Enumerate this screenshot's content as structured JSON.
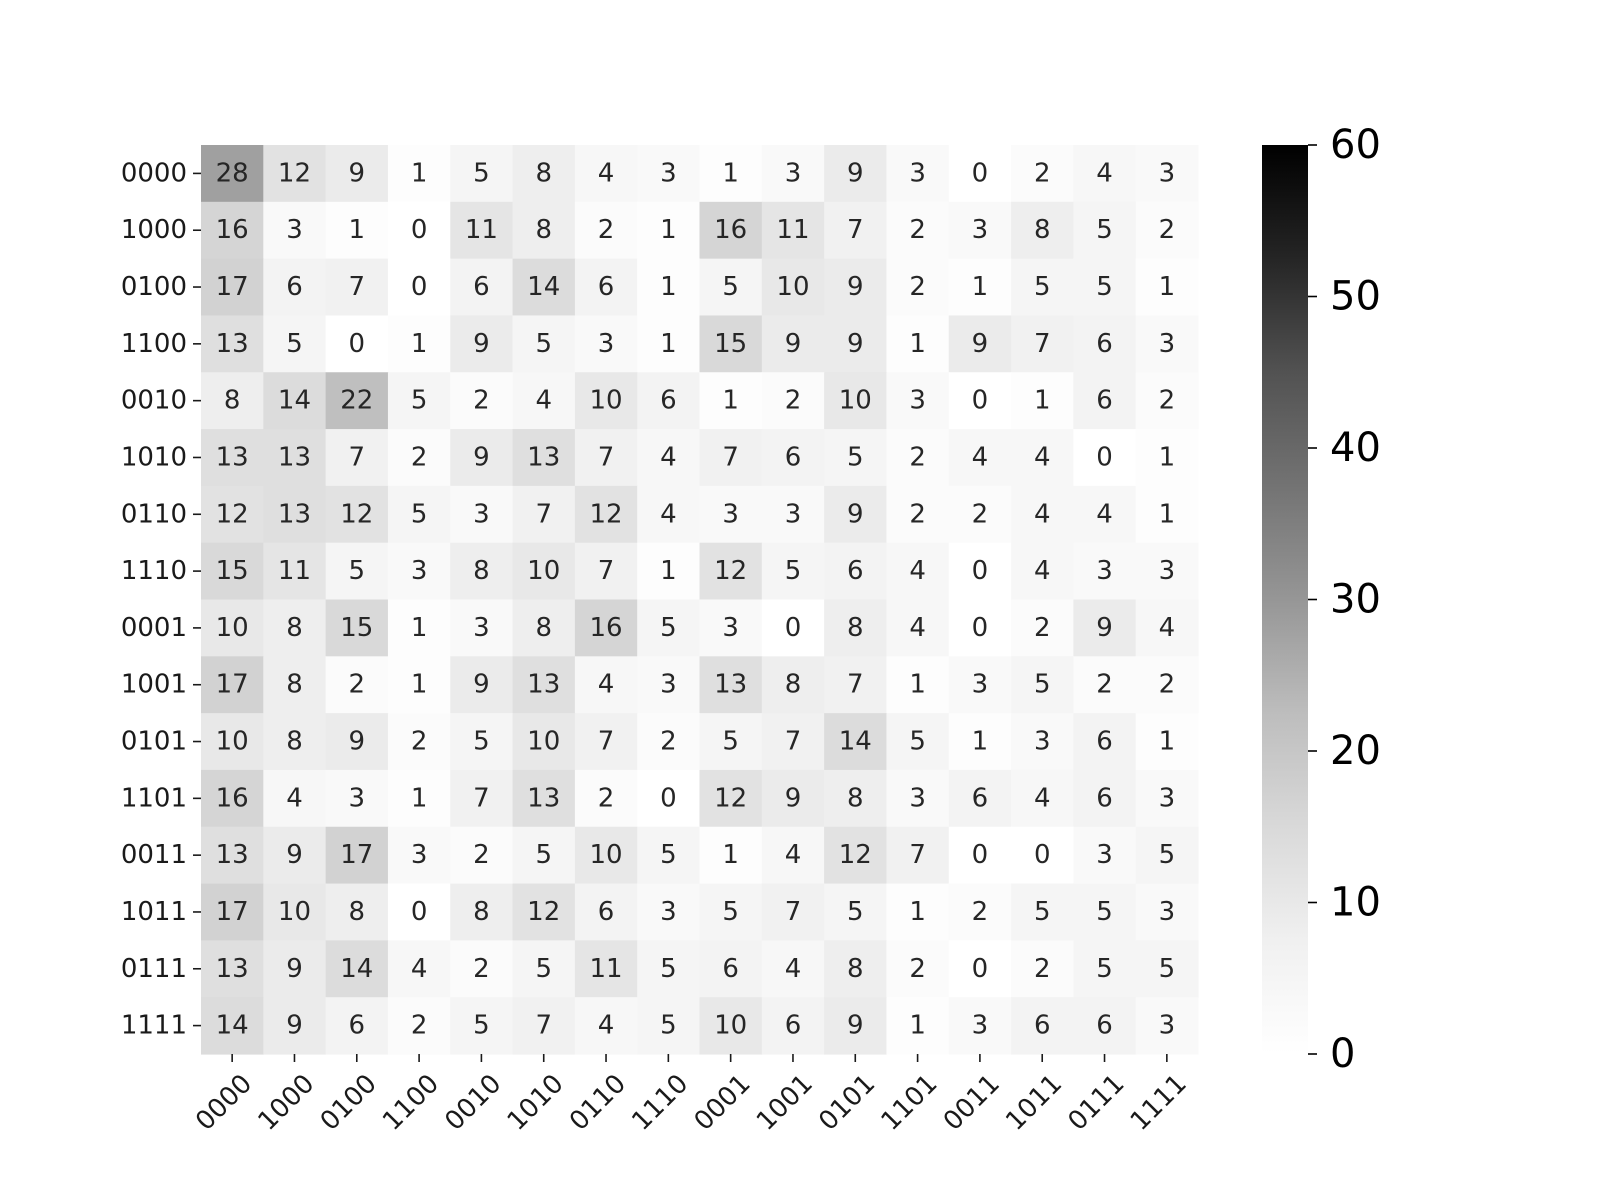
{
  "chart_data": {
    "type": "heatmap",
    "title": "",
    "xlabel": "",
    "ylabel": "",
    "x_categories": [
      "0000",
      "1000",
      "0100",
      "1100",
      "0010",
      "1010",
      "0110",
      "1110",
      "0001",
      "1001",
      "0101",
      "1101",
      "0011",
      "1011",
      "0111",
      "1111"
    ],
    "y_categories": [
      "0000",
      "1000",
      "0100",
      "1100",
      "0010",
      "1010",
      "0110",
      "1110",
      "0001",
      "1001",
      "0101",
      "1101",
      "0011",
      "1011",
      "0111",
      "1111"
    ],
    "values": [
      [
        28,
        12,
        9,
        1,
        5,
        8,
        4,
        3,
        1,
        3,
        9,
        3,
        0,
        2,
        4,
        3
      ],
      [
        16,
        3,
        1,
        0,
        11,
        8,
        2,
        1,
        16,
        11,
        7,
        2,
        3,
        8,
        5,
        2
      ],
      [
        17,
        6,
        7,
        0,
        6,
        14,
        6,
        1,
        5,
        10,
        9,
        2,
        1,
        5,
        5,
        1
      ],
      [
        13,
        5,
        0,
        1,
        9,
        5,
        3,
        1,
        15,
        9,
        9,
        1,
        9,
        7,
        6,
        3
      ],
      [
        8,
        14,
        22,
        5,
        2,
        4,
        10,
        6,
        1,
        2,
        10,
        3,
        0,
        1,
        6,
        2
      ],
      [
        13,
        13,
        7,
        2,
        9,
        13,
        7,
        4,
        7,
        6,
        5,
        2,
        4,
        4,
        0,
        1
      ],
      [
        12,
        13,
        12,
        5,
        3,
        7,
        12,
        4,
        3,
        3,
        9,
        2,
        2,
        4,
        4,
        1
      ],
      [
        15,
        11,
        5,
        3,
        8,
        10,
        7,
        1,
        12,
        5,
        6,
        4,
        0,
        4,
        3,
        3
      ],
      [
        10,
        8,
        15,
        1,
        3,
        8,
        16,
        5,
        3,
        0,
        8,
        4,
        0,
        2,
        9,
        4
      ],
      [
        17,
        8,
        2,
        1,
        9,
        13,
        4,
        3,
        13,
        8,
        7,
        1,
        3,
        5,
        2,
        2
      ],
      [
        10,
        8,
        9,
        2,
        5,
        10,
        7,
        2,
        5,
        7,
        14,
        5,
        1,
        3,
        6,
        1
      ],
      [
        16,
        4,
        3,
        1,
        7,
        13,
        2,
        0,
        12,
        9,
        8,
        3,
        6,
        4,
        6,
        3
      ],
      [
        13,
        9,
        17,
        3,
        2,
        5,
        10,
        5,
        1,
        4,
        12,
        7,
        0,
        0,
        3,
        5
      ],
      [
        17,
        10,
        8,
        0,
        8,
        12,
        6,
        3,
        5,
        7,
        5,
        1,
        2,
        5,
        5,
        3
      ],
      [
        13,
        9,
        14,
        4,
        2,
        5,
        11,
        5,
        6,
        4,
        8,
        2,
        0,
        2,
        5,
        5
      ],
      [
        14,
        9,
        6,
        2,
        5,
        7,
        4,
        5,
        10,
        6,
        9,
        1,
        3,
        6,
        6,
        3
      ]
    ],
    "colorbar": {
      "vmin": 0,
      "vmax": 60,
      "ticks": [
        0,
        10,
        20,
        30,
        40,
        50,
        60
      ],
      "colormap": "Greys"
    },
    "x_tick_rotation_deg": -45,
    "annotations": true,
    "legend_placement": "right (colorbar)",
    "grid": false
  }
}
